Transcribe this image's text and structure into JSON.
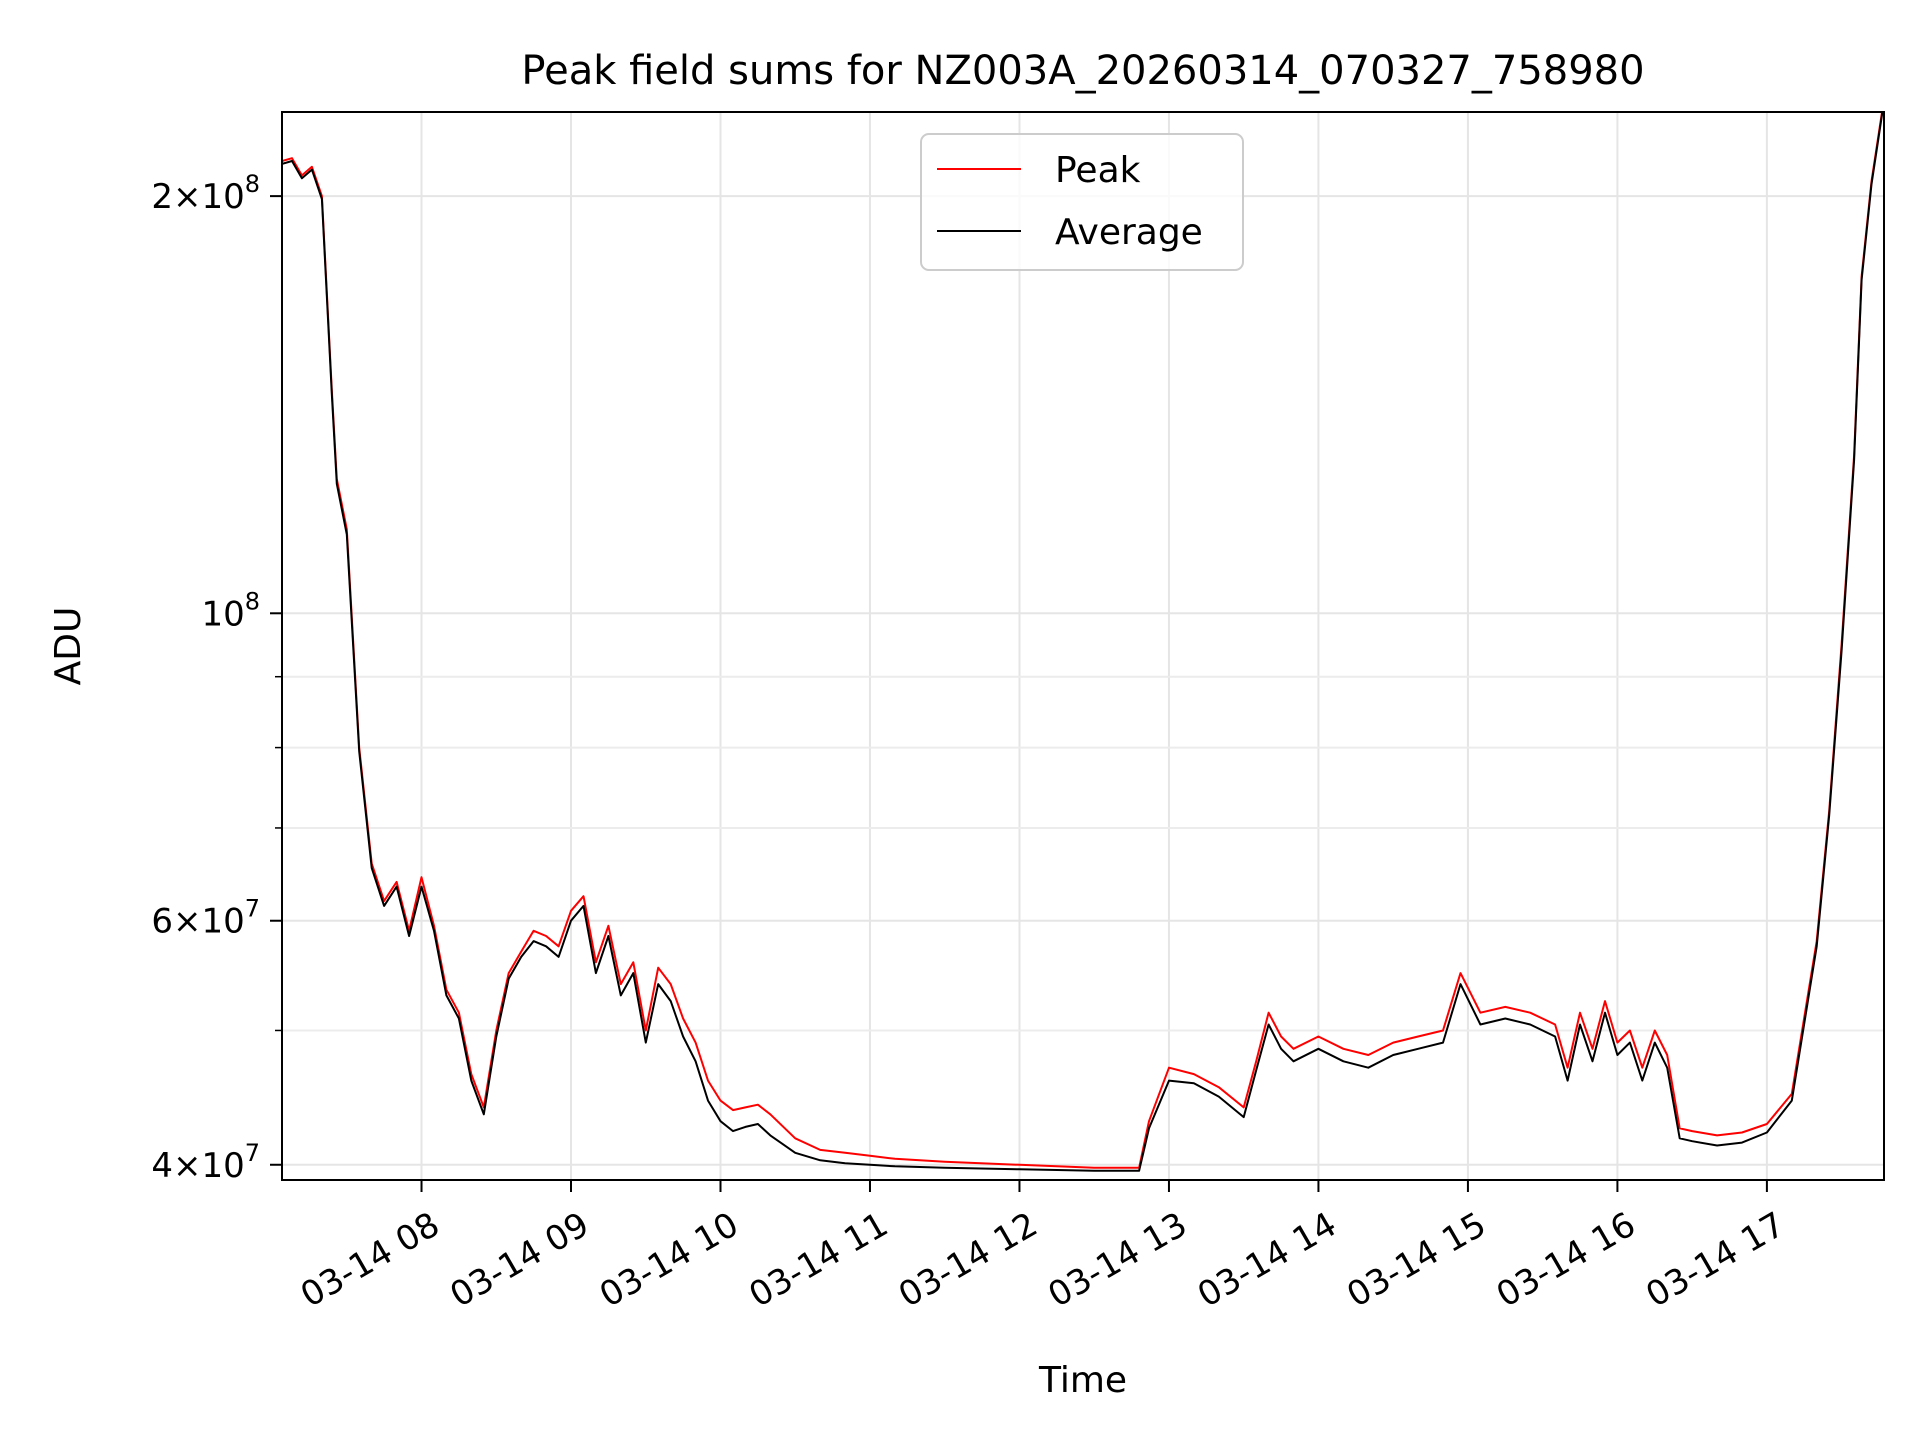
{
  "chart_data": {
    "type": "line",
    "title": "Peak field sums for NZ003A_20260314_070327_758980",
    "xlabel": "Time",
    "ylabel": "ADU",
    "yscale": "log",
    "ylim": [
      39000000,
      230000000
    ],
    "xlim": [
      "2026-03-14 07:04",
      "2026-03-14 17:47"
    ],
    "x_ticks": [
      "03-14 08",
      "03-14 09",
      "03-14 10",
      "03-14 11",
      "03-14 12",
      "03-14 13",
      "03-14 14",
      "03-14 15",
      "03-14 16",
      "03-14 17"
    ],
    "x_tick_times": [
      "2026-03-14 08:00",
      "2026-03-14 09:00",
      "2026-03-14 10:00",
      "2026-03-14 11:00",
      "2026-03-14 12:00",
      "2026-03-14 13:00",
      "2026-03-14 14:00",
      "2026-03-14 15:00",
      "2026-03-14 16:00",
      "2026-03-14 17:00"
    ],
    "y_tick_labels": [
      {
        "value": 40000000,
        "mantissa": "4",
        "exp": "7"
      },
      {
        "value": 60000000,
        "mantissa": "6",
        "exp": "7"
      },
      {
        "value": 100000000,
        "mantissa": "",
        "exp": "8"
      },
      {
        "value": 200000000,
        "mantissa": "2",
        "exp": "8"
      }
    ],
    "y_minor_ticks": [
      50000000,
      70000000,
      80000000,
      90000000
    ],
    "grid": true,
    "legend_position": "upper-center",
    "series": [
      {
        "name": "Peak",
        "color": "#ff0000",
        "x": [
          "2026-03-14 07:04",
          "2026-03-14 07:08",
          "2026-03-14 07:12",
          "2026-03-14 07:16",
          "2026-03-14 07:20",
          "2026-03-14 07:24",
          "2026-03-14 07:26",
          "2026-03-14 07:30",
          "2026-03-14 07:35",
          "2026-03-14 07:40",
          "2026-03-14 07:45",
          "2026-03-14 07:50",
          "2026-03-14 07:55",
          "2026-03-14 08:00",
          "2026-03-14 08:05",
          "2026-03-14 08:10",
          "2026-03-14 08:15",
          "2026-03-14 08:20",
          "2026-03-14 08:25",
          "2026-03-14 08:30",
          "2026-03-14 08:35",
          "2026-03-14 08:40",
          "2026-03-14 08:45",
          "2026-03-14 08:50",
          "2026-03-14 08:55",
          "2026-03-14 09:00",
          "2026-03-14 09:05",
          "2026-03-14 09:10",
          "2026-03-14 09:15",
          "2026-03-14 09:20",
          "2026-03-14 09:25",
          "2026-03-14 09:30",
          "2026-03-14 09:35",
          "2026-03-14 09:40",
          "2026-03-14 09:45",
          "2026-03-14 09:50",
          "2026-03-14 09:55",
          "2026-03-14 10:00",
          "2026-03-14 10:05",
          "2026-03-14 10:10",
          "2026-03-14 10:15",
          "2026-03-14 10:20",
          "2026-03-14 10:30",
          "2026-03-14 10:40",
          "2026-03-14 10:50",
          "2026-03-14 11:00",
          "2026-03-14 11:10",
          "2026-03-14 11:30",
          "2026-03-14 12:00",
          "2026-03-14 12:30",
          "2026-03-14 12:48",
          "2026-03-14 12:52",
          "2026-03-14 13:00",
          "2026-03-14 13:10",
          "2026-03-14 13:20",
          "2026-03-14 13:30",
          "2026-03-14 13:35",
          "2026-03-14 13:40",
          "2026-03-14 13:45",
          "2026-03-14 13:50",
          "2026-03-14 14:00",
          "2026-03-14 14:10",
          "2026-03-14 14:20",
          "2026-03-14 14:30",
          "2026-03-14 14:40",
          "2026-03-14 14:50",
          "2026-03-14 14:57",
          "2026-03-14 15:05",
          "2026-03-14 15:15",
          "2026-03-14 15:25",
          "2026-03-14 15:35",
          "2026-03-14 15:40",
          "2026-03-14 15:45",
          "2026-03-14 15:50",
          "2026-03-14 15:55",
          "2026-03-14 16:00",
          "2026-03-14 16:05",
          "2026-03-14 16:10",
          "2026-03-14 16:15",
          "2026-03-14 16:20",
          "2026-03-14 16:25",
          "2026-03-14 16:30",
          "2026-03-14 16:40",
          "2026-03-14 16:50",
          "2026-03-14 17:00",
          "2026-03-14 17:10",
          "2026-03-14 17:20",
          "2026-03-14 17:25",
          "2026-03-14 17:30",
          "2026-03-14 17:35",
          "2026-03-14 17:38",
          "2026-03-14 17:42",
          "2026-03-14 17:47"
        ],
        "y": [
          212000000,
          213000000,
          207000000,
          210000000,
          200000000,
          145000000,
          125000000,
          115000000,
          80000000,
          66000000,
          62000000,
          64000000,
          59000000,
          64500000,
          59500000,
          53500000,
          51500000,
          46500000,
          44000000,
          50000000,
          55000000,
          57000000,
          59000000,
          58500000,
          57500000,
          61000000,
          62500000,
          56000000,
          59500000,
          54000000,
          56000000,
          50000000,
          55500000,
          54000000,
          51000000,
          49000000,
          46000000,
          44500000,
          43800000,
          44000000,
          44200000,
          43500000,
          41800000,
          41000000,
          40800000,
          40600000,
          40400000,
          40200000,
          40000000,
          39800000,
          39800000,
          43000000,
          47000000,
          46500000,
          45500000,
          44000000,
          47500000,
          51500000,
          49500000,
          48500000,
          49500000,
          48500000,
          48000000,
          49000000,
          49500000,
          50000000,
          55000000,
          51500000,
          52000000,
          51500000,
          50500000,
          47000000,
          51500000,
          48500000,
          52500000,
          49000000,
          50000000,
          47000000,
          50000000,
          48000000,
          42500000,
          42300000,
          42000000,
          42200000,
          42800000,
          45000000,
          58000000,
          72000000,
          95000000,
          130000000,
          175000000,
          205000000,
          235000000
        ]
      },
      {
        "name": "Average",
        "color": "#000000",
        "x": [
          "2026-03-14 07:04",
          "2026-03-14 07:08",
          "2026-03-14 07:12",
          "2026-03-14 07:16",
          "2026-03-14 07:20",
          "2026-03-14 07:24",
          "2026-03-14 07:26",
          "2026-03-14 07:30",
          "2026-03-14 07:35",
          "2026-03-14 07:40",
          "2026-03-14 07:45",
          "2026-03-14 07:50",
          "2026-03-14 07:55",
          "2026-03-14 08:00",
          "2026-03-14 08:05",
          "2026-03-14 08:10",
          "2026-03-14 08:15",
          "2026-03-14 08:20",
          "2026-03-14 08:25",
          "2026-03-14 08:30",
          "2026-03-14 08:35",
          "2026-03-14 08:40",
          "2026-03-14 08:45",
          "2026-03-14 08:50",
          "2026-03-14 08:55",
          "2026-03-14 09:00",
          "2026-03-14 09:05",
          "2026-03-14 09:10",
          "2026-03-14 09:15",
          "2026-03-14 09:20",
          "2026-03-14 09:25",
          "2026-03-14 09:30",
          "2026-03-14 09:35",
          "2026-03-14 09:40",
          "2026-03-14 09:45",
          "2026-03-14 09:50",
          "2026-03-14 09:55",
          "2026-03-14 10:00",
          "2026-03-14 10:05",
          "2026-03-14 10:10",
          "2026-03-14 10:15",
          "2026-03-14 10:20",
          "2026-03-14 10:30",
          "2026-03-14 10:40",
          "2026-03-14 10:50",
          "2026-03-14 11:00",
          "2026-03-14 11:10",
          "2026-03-14 11:30",
          "2026-03-14 12:00",
          "2026-03-14 12:30",
          "2026-03-14 12:48",
          "2026-03-14 12:52",
          "2026-03-14 13:00",
          "2026-03-14 13:10",
          "2026-03-14 13:20",
          "2026-03-14 13:30",
          "2026-03-14 13:35",
          "2026-03-14 13:40",
          "2026-03-14 13:45",
          "2026-03-14 13:50",
          "2026-03-14 14:00",
          "2026-03-14 14:10",
          "2026-03-14 14:20",
          "2026-03-14 14:30",
          "2026-03-14 14:40",
          "2026-03-14 14:50",
          "2026-03-14 14:57",
          "2026-03-14 15:05",
          "2026-03-14 15:15",
          "2026-03-14 15:25",
          "2026-03-14 15:35",
          "2026-03-14 15:40",
          "2026-03-14 15:45",
          "2026-03-14 15:50",
          "2026-03-14 15:55",
          "2026-03-14 16:00",
          "2026-03-14 16:05",
          "2026-03-14 16:10",
          "2026-03-14 16:15",
          "2026-03-14 16:20",
          "2026-03-14 16:25",
          "2026-03-14 16:30",
          "2026-03-14 16:40",
          "2026-03-14 16:50",
          "2026-03-14 17:00",
          "2026-03-14 17:10",
          "2026-03-14 17:20",
          "2026-03-14 17:25",
          "2026-03-14 17:30",
          "2026-03-14 17:35",
          "2026-03-14 17:38",
          "2026-03-14 17:42",
          "2026-03-14 17:47"
        ],
        "y": [
          211000000,
          212000000,
          206000000,
          209000000,
          199000000,
          144000000,
          124000000,
          114000000,
          79500000,
          65500000,
          61500000,
          63500000,
          58500000,
          63500000,
          59000000,
          53000000,
          51000000,
          46000000,
          43500000,
          49500000,
          54500000,
          56500000,
          58000000,
          57500000,
          56500000,
          60000000,
          61500000,
          55000000,
          58500000,
          53000000,
          55000000,
          49000000,
          54000000,
          52500000,
          49500000,
          47500000,
          44500000,
          43000000,
          42300000,
          42600000,
          42800000,
          42000000,
          40800000,
          40300000,
          40100000,
          40000000,
          39900000,
          39800000,
          39700000,
          39600000,
          39600000,
          42500000,
          46000000,
          45800000,
          44800000,
          43300000,
          46800000,
          50500000,
          48500000,
          47500000,
          48500000,
          47500000,
          47000000,
          48000000,
          48500000,
          49000000,
          54000000,
          50500000,
          51000000,
          50500000,
          49500000,
          46000000,
          50500000,
          47500000,
          51500000,
          48000000,
          49000000,
          46000000,
          49000000,
          47000000,
          41800000,
          41600000,
          41300000,
          41500000,
          42200000,
          44500000,
          57500000,
          71500000,
          94000000,
          129000000,
          174000000,
          204000000,
          234000000
        ]
      }
    ]
  }
}
